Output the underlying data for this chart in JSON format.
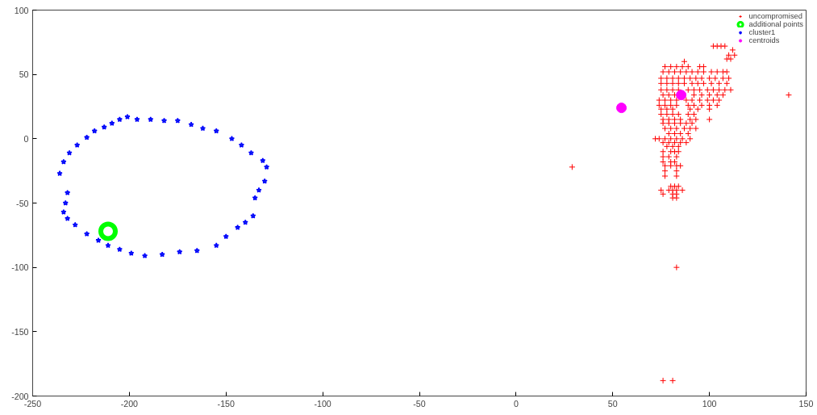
{
  "chart_data": {
    "type": "scatter",
    "xlim": [
      -250,
      150
    ],
    "ylim": [
      -200,
      100
    ],
    "xticks": [
      -250,
      -200,
      -150,
      -100,
      -50,
      0,
      50,
      100,
      150
    ],
    "yticks": [
      -200,
      -150,
      -100,
      -50,
      0,
      50,
      100
    ],
    "grid": false,
    "legend": "top right",
    "series": [
      {
        "name": "uncompromised",
        "color": "#ff0000",
        "marker": "cross",
        "x": [
          102,
          104,
          106,
          108,
          112,
          110,
          113,
          109,
          111,
          87,
          77,
          80,
          83,
          86,
          89,
          95,
          97,
          76,
          79,
          82,
          85,
          88,
          91,
          94,
          97,
          101,
          104,
          107,
          109,
          75,
          78,
          81,
          84,
          87,
          90,
          93,
          96,
          100,
          103,
          107,
          110,
          75,
          78,
          81,
          84,
          87,
          91,
          94,
          97,
          101,
          105,
          109,
          75,
          78,
          81,
          84,
          89,
          92,
          95,
          99,
          102,
          105,
          108,
          111,
          76,
          79,
          82,
          92,
          96,
          100,
          104,
          107,
          74,
          77,
          80,
          83,
          88,
          91,
          95,
          99,
          102,
          105,
          74,
          77,
          80,
          83,
          89,
          92,
          96,
          100,
          104,
          75,
          78,
          81,
          90,
          94,
          100,
          75,
          78,
          81,
          84,
          89,
          92,
          76,
          79,
          82,
          85,
          90,
          93,
          100,
          76,
          79,
          82,
          85,
          88,
          91,
          77,
          80,
          83,
          87,
          90,
          93,
          79,
          82,
          85,
          89,
          72,
          74,
          77,
          80,
          83,
          86,
          90,
          76,
          79,
          82,
          85,
          88,
          78,
          81,
          84,
          76,
          80,
          82,
          84,
          76,
          79,
          83,
          76,
          80,
          82,
          77,
          80,
          83,
          85,
          77,
          83,
          77,
          83,
          80,
          82,
          84,
          75,
          79,
          81,
          83,
          86,
          76,
          81,
          83,
          81,
          83,
          83,
          76,
          81,
          29,
          141
        ],
        "values": [
          72,
          72,
          72,
          72,
          69,
          65,
          65,
          62,
          62,
          60,
          56,
          56,
          56,
          56,
          56,
          56,
          56,
          52,
          52,
          52,
          52,
          52,
          52,
          52,
          52,
          52,
          52,
          52,
          52,
          47,
          47,
          47,
          47,
          47,
          47,
          47,
          47,
          47,
          47,
          47,
          47,
          43,
          43,
          43,
          43,
          43,
          43,
          43,
          43,
          43,
          43,
          43,
          38,
          38,
          38,
          38,
          38,
          38,
          38,
          38,
          38,
          38,
          38,
          38,
          34,
          34,
          34,
          34,
          34,
          34,
          34,
          34,
          30,
          30,
          30,
          30,
          30,
          30,
          30,
          30,
          30,
          30,
          26,
          26,
          26,
          26,
          26,
          26,
          26,
          26,
          26,
          23,
          23,
          23,
          23,
          23,
          23,
          19,
          19,
          19,
          19,
          19,
          19,
          15,
          15,
          15,
          15,
          15,
          15,
          15,
          12,
          12,
          12,
          12,
          12,
          12,
          8,
          8,
          8,
          8,
          8,
          8,
          4,
          4,
          4,
          4,
          0,
          0,
          0,
          0,
          0,
          0,
          0,
          -3,
          -3,
          -3,
          -3,
          -3,
          -6,
          -6,
          -6,
          -10,
          -10,
          -10,
          -10,
          -14,
          -14,
          -14,
          -18,
          -18,
          -18,
          -21,
          -21,
          -21,
          -21,
          -25,
          -25,
          -29,
          -29,
          -37,
          -37,
          -37,
          -40,
          -40,
          -40,
          -40,
          -40,
          -43,
          -43,
          -43,
          -46,
          -46,
          -100,
          -188,
          -188,
          -22,
          34
        ]
      },
      {
        "name": "additional points",
        "color": "#00ff00",
        "marker": "circle",
        "x": [
          -211
        ],
        "values": [
          -72
        ]
      },
      {
        "name": "cluster1",
        "color": "#0000ff",
        "marker": "star",
        "x": [
          -201,
          -196,
          -189,
          -182,
          -175,
          -168,
          -162,
          -155,
          -147,
          -142,
          -137,
          -131,
          -129,
          -130,
          -133,
          -135,
          -136,
          -140,
          -144,
          -150,
          -155,
          -165,
          -174,
          -183,
          -192,
          -199,
          -205,
          -211,
          -216,
          -222,
          -228,
          -232,
          -234,
          -233,
          -232,
          -236,
          -234,
          -231,
          -227,
          -222,
          -218,
          -213,
          -209,
          -205
        ],
        "values": [
          17,
          15,
          15,
          14,
          14,
          11,
          8,
          6,
          0,
          -5,
          -11,
          -17,
          -22,
          -33,
          -40,
          -46,
          -60,
          -65,
          -69,
          -76,
          -83,
          -87,
          -88,
          -90,
          -91,
          -89,
          -86,
          -83,
          -79,
          -74,
          -67,
          -62,
          -57,
          -50,
          -42,
          -27,
          -18,
          -11,
          -5,
          1,
          6,
          9,
          12,
          15
        ]
      },
      {
        "name": "centroids",
        "color": "#ff00ff",
        "marker": "circle",
        "x": [
          54.5,
          85.4
        ],
        "values": [
          24,
          34
        ]
      }
    ]
  }
}
